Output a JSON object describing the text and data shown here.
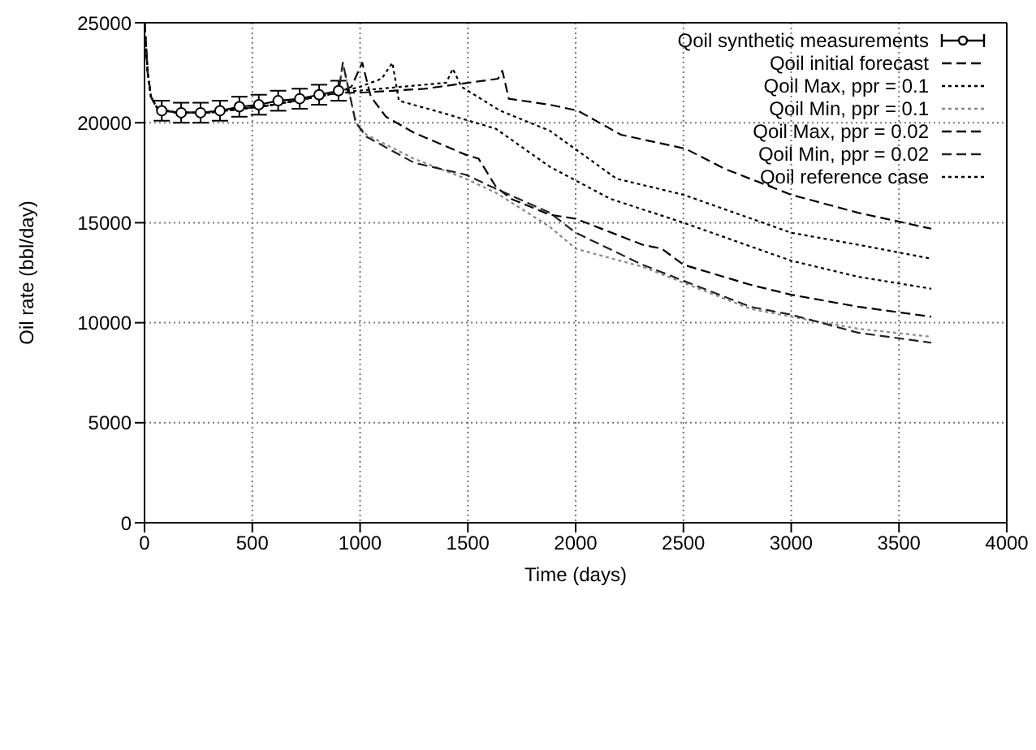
{
  "chart_data": {
    "type": "line",
    "xlabel": "Time (days)",
    "ylabel": "Oil rate (bbl/day)",
    "xlim": [
      0,
      4000
    ],
    "xticks": [
      0,
      500,
      1000,
      1500,
      2000,
      2500,
      3000,
      3500,
      4000
    ],
    "ylim": [
      0,
      25000
    ],
    "yticks": [
      0,
      5000,
      10000,
      15000,
      20000,
      25000
    ],
    "grid": true,
    "legend": "top right",
    "series": [
      {
        "name": "Qoil synthetic measurements",
        "color": "#000000",
        "marker": "circle",
        "line_style": "solid",
        "x": [
          80,
          170,
          260,
          350,
          440,
          530,
          620,
          720,
          810,
          900
        ],
        "values": [
          20600,
          20500,
          20500,
          20600,
          20800,
          20900,
          21100,
          21200,
          21400,
          21600
        ],
        "errors": [
          500,
          500,
          500,
          500,
          500,
          500,
          500,
          500,
          500,
          500
        ]
      },
      {
        "name": "Qoil initial forecast",
        "color": "#000000",
        "line_style": "dashed",
        "x": [
          0,
          15,
          30,
          60,
          150,
          300,
          450,
          600,
          750,
          900,
          960,
          1010,
          1050,
          1120,
          1250,
          1490,
          1550,
          1630,
          1700,
          1880,
          2000,
          2310,
          2400,
          2500,
          2810,
          3000,
          3310,
          3650
        ],
        "values": [
          25000,
          22500,
          21300,
          20700,
          20500,
          20500,
          20700,
          20900,
          21200,
          21500,
          21800,
          23000,
          21300,
          20300,
          19500,
          18400,
          18200,
          16800,
          16200,
          15400,
          15200,
          13900,
          13700,
          12900,
          11900,
          11400,
          10800,
          10300
        ]
      },
      {
        "name": "Qoil Max, ppr = 0.1",
        "color": "#000000",
        "line_style": "dotted",
        "x": [
          0,
          15,
          30,
          60,
          150,
          300,
          450,
          600,
          750,
          900,
          990,
          1400,
          1430,
          1470,
          1650,
          1880,
          2190,
          2500,
          3000,
          3310,
          3650
        ],
        "values": [
          25000,
          22500,
          21300,
          20700,
          20500,
          20500,
          20700,
          20900,
          21200,
          21500,
          21600,
          22000,
          22700,
          21800,
          20600,
          19600,
          17200,
          16400,
          14500,
          13900,
          13200
        ]
      },
      {
        "name": "Qoil Min, ppr = 0.1",
        "color": "#888888",
        "line_style": "dotted",
        "x": [
          0,
          15,
          30,
          60,
          150,
          300,
          450,
          600,
          750,
          900,
          920,
          980,
          1030,
          1250,
          1490,
          1630,
          1880,
          2000,
          2310,
          2500,
          2810,
          3000,
          3310,
          3650
        ],
        "values": [
          25000,
          22500,
          21300,
          20700,
          20500,
          20500,
          20700,
          20900,
          21200,
          21500,
          23000,
          20000,
          19400,
          18200,
          17200,
          16500,
          14800,
          13700,
          12800,
          12000,
          10700,
          10300,
          9700,
          9300
        ]
      },
      {
        "name": "Qoil Max, ppr = 0.02",
        "color": "#000000",
        "line_style": "dashed",
        "x": [
          0,
          15,
          30,
          60,
          150,
          300,
          450,
          600,
          750,
          900,
          1000,
          1300,
          1640,
          1660,
          1690,
          1880,
          2010,
          2060,
          2210,
          2510,
          2690,
          3000,
          3310,
          3650
        ],
        "values": [
          25000,
          22500,
          21300,
          20700,
          20500,
          20500,
          20700,
          20900,
          21200,
          21500,
          21500,
          21700,
          22200,
          22600,
          21200,
          20900,
          20600,
          20300,
          19400,
          18700,
          17700,
          16400,
          15500,
          14700
        ]
      },
      {
        "name": "Qoil Min, ppr = 0.02",
        "color": "#222222",
        "line_style": "dashed",
        "x": [
          0,
          15,
          30,
          60,
          150,
          300,
          450,
          600,
          750,
          900,
          920,
          980,
          1030,
          1250,
          1490,
          1630,
          1880,
          2000,
          2310,
          2500,
          2810,
          3000,
          3310,
          3650
        ],
        "values": [
          25000,
          22500,
          21300,
          20700,
          20500,
          20500,
          20700,
          20900,
          21200,
          21500,
          23000,
          20000,
          19300,
          18000,
          17400,
          16700,
          15500,
          14500,
          12900,
          12100,
          10800,
          10400,
          9500,
          9000
        ]
      },
      {
        "name": "Qoil reference case",
        "color": "#000000",
        "line_style": "dotted",
        "x": [
          0,
          15,
          30,
          60,
          150,
          300,
          450,
          600,
          750,
          900,
          1000,
          1100,
          1150,
          1180,
          1380,
          1630,
          1880,
          2160,
          2500,
          3000,
          3310,
          3650
        ],
        "values": [
          25000,
          22500,
          21300,
          20700,
          20500,
          20500,
          20700,
          20900,
          21200,
          21500,
          21800,
          22200,
          23000,
          21100,
          20500,
          19700,
          17800,
          16200,
          15000,
          13100,
          12300,
          11700
        ]
      }
    ]
  }
}
